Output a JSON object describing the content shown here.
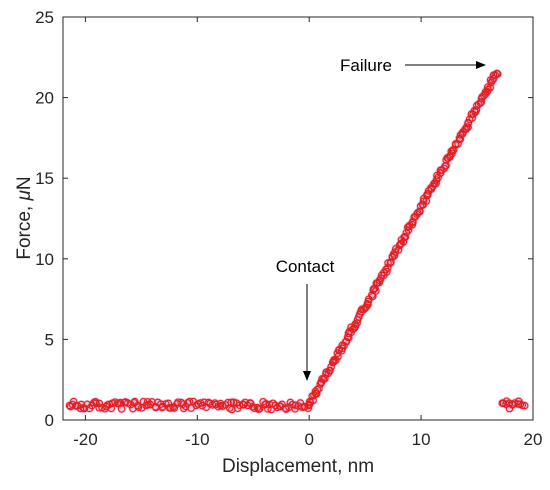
{
  "chart_data": {
    "type": "scatter",
    "title": "",
    "xlabel": "Displacement, nm",
    "ylabel_prefix": "Force, ",
    "ylabel_mu": "μ",
    "ylabel_unit": "N",
    "xlim": [
      -22,
      20
    ],
    "ylim": [
      0,
      25
    ],
    "xticks": [
      -20,
      -10,
      0,
      10,
      20
    ],
    "yticks": [
      0,
      5,
      10,
      15,
      20,
      25
    ],
    "grid": false,
    "marker": "open-circle",
    "colors": {
      "marker": "#e0201b",
      "halo": "#e9a3d8",
      "axis": "#262626"
    },
    "segments": [
      {
        "name": "approach",
        "x_start": -21.5,
        "x_end": 0,
        "y_start": 0.9,
        "y_end": 0.9,
        "noise": 0.25,
        "count": 130
      },
      {
        "name": "loading",
        "x_start": 0,
        "x_end": 16.8,
        "y_start": 0.9,
        "y_end": 21.6,
        "noise": 0.15,
        "count": 190
      },
      {
        "name": "post-failure",
        "x_start": 17.2,
        "x_end": 19.2,
        "y_start": 0.95,
        "y_end": 0.95,
        "noise": 0.25,
        "count": 14
      }
    ],
    "annotations": [
      {
        "text": "Contact",
        "x": 0,
        "y": 1.0,
        "arrow": "down"
      },
      {
        "text": "Failure",
        "x": 16.8,
        "y": 21.6,
        "arrow": "right"
      }
    ]
  }
}
